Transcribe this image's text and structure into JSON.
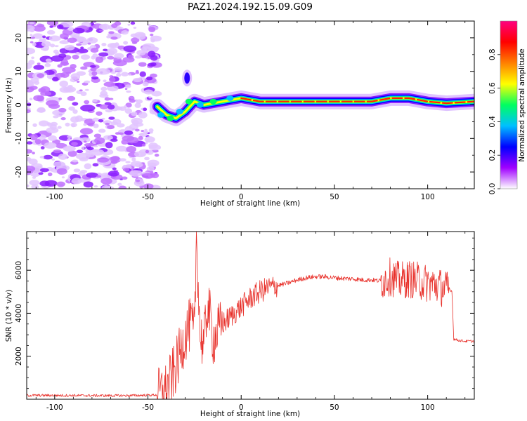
{
  "title": "PAZ1.2024.192.15.09.G09",
  "chart_data": [
    {
      "type": "heatmap",
      "xlabel": "Height of straight line (km)",
      "ylabel": "Frequency (Hz)",
      "xlim": [
        -115,
        125
      ],
      "ylim": [
        -25,
        25
      ],
      "xticks": [
        -100,
        -50,
        0,
        50,
        100
      ],
      "yticks": [
        -20,
        -10,
        0,
        10,
        20
      ],
      "colorbar": {
        "label": "Normalized spectral amplitude",
        "range": [
          0,
          1
        ],
        "ticks": [
          0.0,
          0.2,
          0.4,
          0.6,
          0.8
        ],
        "colormap": "gist_rainbow",
        "colors": [
          "#ffffff",
          "#a000ff",
          "#0000ff",
          "#00c0ff",
          "#00ff60",
          "#ffff00",
          "#ff8000",
          "#ff0000",
          "#ff0080"
        ]
      },
      "noise_region": {
        "x": [
          -115,
          -45
        ],
        "y": [
          -25,
          25
        ]
      },
      "ridge": {
        "x": [
          -45,
          -40,
          -35,
          -30,
          -25,
          -20,
          -10,
          0,
          10,
          20,
          30,
          40,
          50,
          60,
          70,
          80,
          90,
          100,
          110,
          125
        ],
        "y": [
          -0.5,
          -3,
          -4,
          -2,
          1,
          0,
          1,
          2,
          1,
          1,
          1,
          1,
          1,
          1,
          1,
          2,
          2,
          1,
          0.5,
          1
        ]
      },
      "secondary_feature": {
        "x": [
          -30,
          -27
        ],
        "y": [
          10,
          5
        ]
      }
    },
    {
      "type": "line",
      "xlabel": "Height of straight line (km)",
      "ylabel": "SNR (10 * v/v)",
      "xlim": [
        -115,
        125
      ],
      "ylim": [
        0,
        7800
      ],
      "xticks": [
        -100,
        -50,
        0,
        50,
        100
      ],
      "yticks": [
        2000,
        4000,
        6000
      ],
      "color": "#e8302a",
      "x": [
        -115,
        -100,
        -80,
        -60,
        -45,
        -40,
        -35,
        -30,
        -27,
        -25,
        -24,
        -22,
        -20,
        -18,
        -15,
        -10,
        -5,
        0,
        5,
        10,
        15,
        20,
        25,
        30,
        35,
        40,
        45,
        50,
        55,
        60,
        65,
        70,
        75,
        80,
        85,
        90,
        95,
        100,
        105,
        110,
        113,
        114,
        116,
        120,
        125
      ],
      "y": [
        180,
        180,
        170,
        170,
        200,
        450,
        1500,
        3000,
        3500,
        3000,
        7800,
        3000,
        2500,
        4500,
        2800,
        3500,
        3900,
        4300,
        4700,
        5000,
        5200,
        5300,
        5400,
        5550,
        5650,
        5700,
        5700,
        5650,
        5620,
        5600,
        5550,
        5550,
        5500,
        5700,
        5500,
        5600,
        5500,
        5400,
        5300,
        5100,
        5050,
        2800,
        2750,
        2700,
        2700
      ]
    }
  ]
}
